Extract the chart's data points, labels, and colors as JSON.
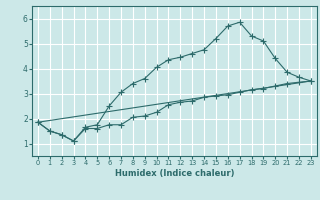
{
  "xlabel": "Humidex (Indice chaleur)",
  "bg_color": "#cce8e8",
  "grid_color": "#ffffff",
  "line_color": "#2d6b6b",
  "xlim": [
    -0.5,
    23.5
  ],
  "ylim": [
    0.5,
    6.5
  ],
  "xticks": [
    0,
    1,
    2,
    3,
    4,
    5,
    6,
    7,
    8,
    9,
    10,
    11,
    12,
    13,
    14,
    15,
    16,
    17,
    18,
    19,
    20,
    21,
    22,
    23
  ],
  "yticks": [
    1,
    2,
    3,
    4,
    5,
    6
  ],
  "series1_x": [
    0,
    1,
    2,
    3,
    4,
    5,
    6,
    7,
    8,
    9,
    10,
    11,
    12,
    13,
    14,
    15,
    16,
    17,
    18,
    19,
    20,
    21,
    22,
    23
  ],
  "series1_y": [
    1.85,
    1.5,
    1.35,
    1.1,
    1.6,
    1.6,
    1.75,
    1.75,
    2.05,
    2.1,
    2.25,
    2.55,
    2.65,
    2.7,
    2.85,
    2.9,
    2.95,
    3.05,
    3.15,
    3.2,
    3.3,
    3.4,
    3.45,
    3.5
  ],
  "series2_x": [
    0,
    1,
    2,
    3,
    4,
    5,
    6,
    7,
    8,
    9,
    10,
    11,
    12,
    13,
    14,
    15,
    16,
    17,
    18,
    19,
    20,
    21,
    22,
    23
  ],
  "series2_y": [
    1.85,
    1.5,
    1.35,
    1.1,
    1.65,
    1.75,
    2.5,
    3.05,
    3.4,
    3.6,
    4.05,
    4.35,
    4.45,
    4.6,
    4.75,
    5.2,
    5.7,
    5.85,
    5.3,
    5.1,
    4.4,
    3.85,
    3.65,
    3.5
  ],
  "series3_x": [
    0,
    23
  ],
  "series3_y": [
    1.85,
    3.5
  ],
  "markersize": 2.5
}
